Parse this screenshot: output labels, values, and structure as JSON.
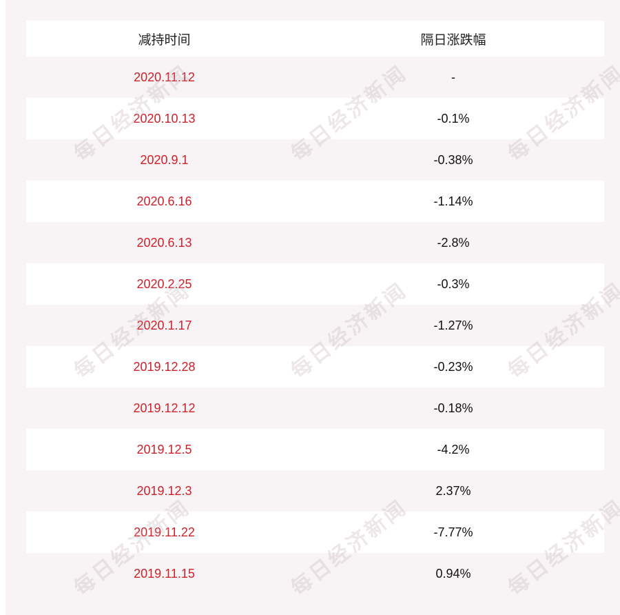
{
  "table": {
    "headers": {
      "date": "减持时间",
      "change": "隔日涨跌幅"
    },
    "rows": [
      {
        "date": "2020.11.12",
        "change": "-"
      },
      {
        "date": "2020.10.13",
        "change": "-0.1%"
      },
      {
        "date": "2020.9.1",
        "change": "-0.38%"
      },
      {
        "date": "2020.6.16",
        "change": "-1.14%"
      },
      {
        "date": "2020.6.13",
        "change": "-2.8%"
      },
      {
        "date": "2020.2.25",
        "change": "-0.3%"
      },
      {
        "date": "2020.1.17",
        "change": "-1.27%"
      },
      {
        "date": "2019.12.28",
        "change": "-0.23%"
      },
      {
        "date": "2019.12.12",
        "change": "-0.18%"
      },
      {
        "date": "2019.12.5",
        "change": "-4.2%"
      },
      {
        "date": "2019.12.3",
        "change": "2.37%"
      },
      {
        "date": "2019.11.22",
        "change": "-7.77%"
      },
      {
        "date": "2019.11.15",
        "change": "0.94%"
      }
    ]
  },
  "watermark": {
    "text": "每日经济新闻"
  },
  "colors": {
    "date_text": "#d0202a",
    "panel_bg": "#f8f4f5"
  }
}
